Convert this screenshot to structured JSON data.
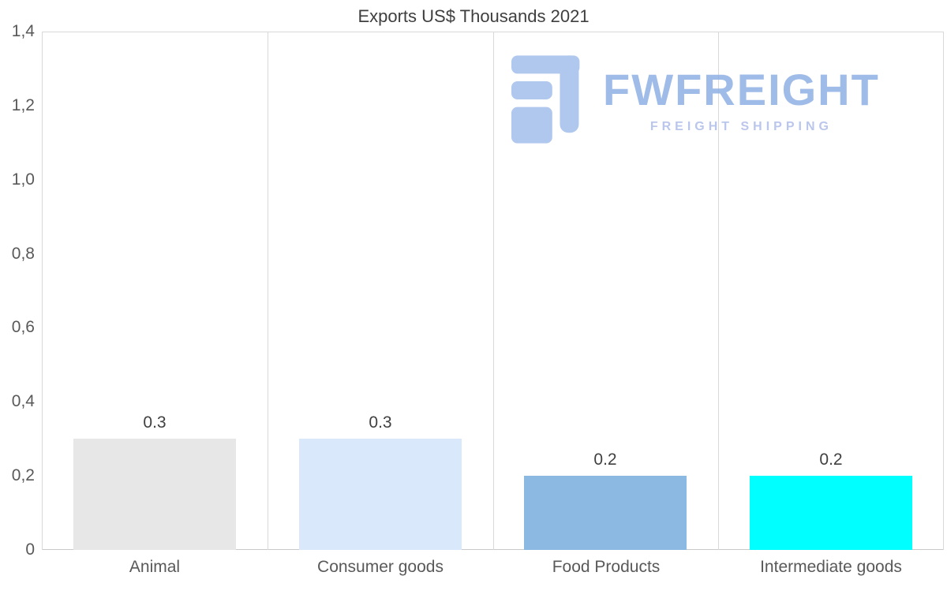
{
  "title": "Exports US$ Thousands 2021",
  "watermark": {
    "brand": "FWFREIGHT",
    "tagline": "FREIGHT SHIPPING",
    "logo_icon": "freight-logo-icon",
    "color": "#8fb0e4"
  },
  "chart_data": {
    "type": "bar",
    "title": "Exports US$ Thousands 2021",
    "categories": [
      "Animal",
      "Consumer goods",
      "Food Products",
      "Intermediate goods"
    ],
    "values": [
      0.3,
      0.3,
      0.2,
      0.2
    ],
    "value_labels": [
      "0.3",
      "0.3",
      "0.2",
      "0.2"
    ],
    "bar_colors": [
      "#e7e7e7",
      "#d9e8fa",
      "#8cb9e2",
      "#00ffff"
    ],
    "xlabel": "",
    "ylabel": "",
    "ylim": [
      0,
      1.4
    ],
    "ytick_step": 0.2,
    "ytick_labels": [
      "0",
      "0,2",
      "0,4",
      "0,6",
      "0,8",
      "1,0",
      "1,2",
      "1,4"
    ],
    "grid": "vertical category separators, top border, bottom axis",
    "legend": "none"
  }
}
